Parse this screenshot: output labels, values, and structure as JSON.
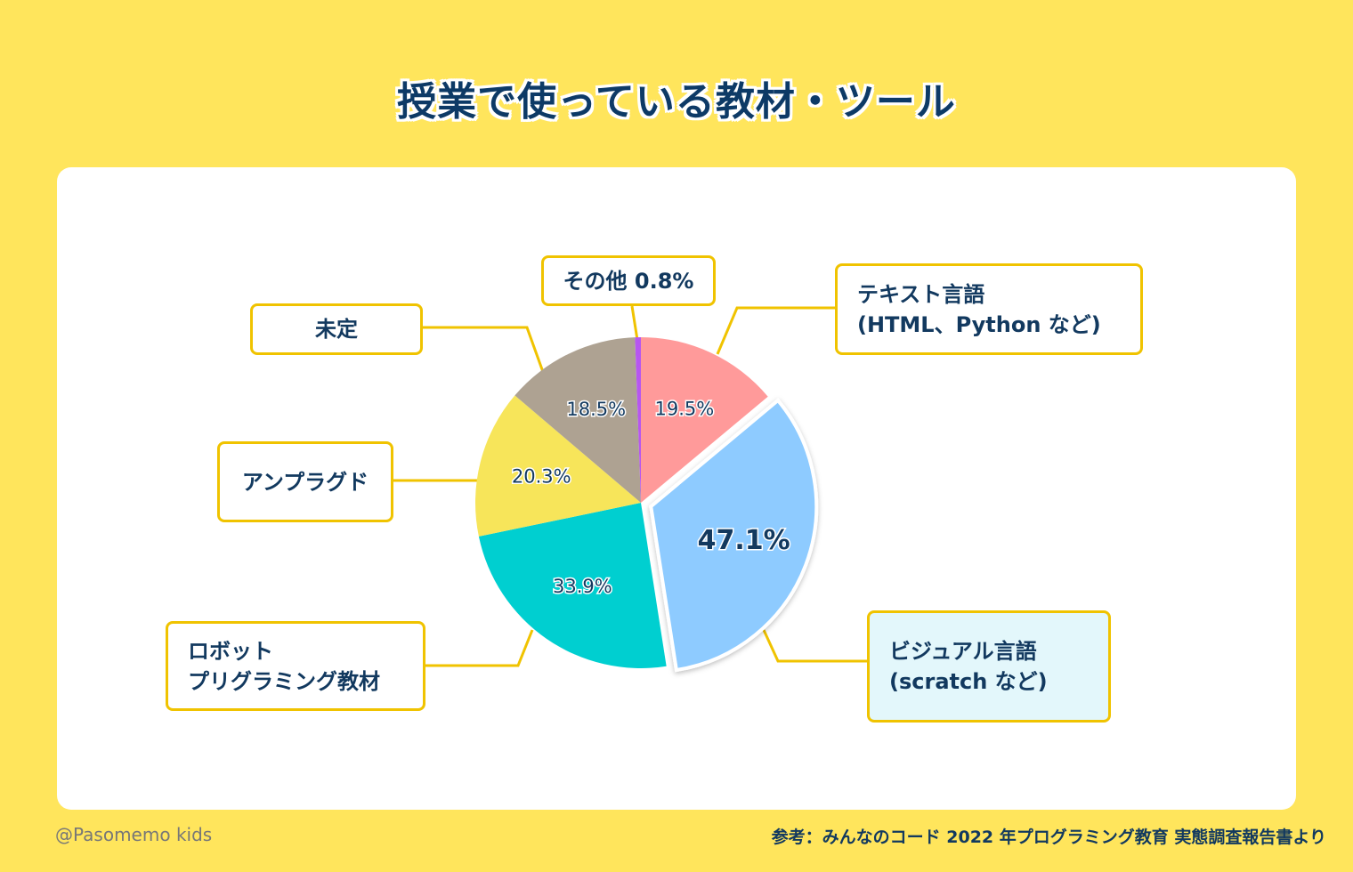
{
  "title": "授業で使っている教材・ツール",
  "footer": {
    "credit": "@Pasomemo kids",
    "source": "参考：みんなのコード 2022 年プログラミング教育 実態調査報告書より"
  },
  "chart_data": {
    "type": "pie",
    "slices": [
      {
        "label_lines": [
          "テキスト言語",
          "(HTML、Python など)"
        ],
        "value": 19.5,
        "value_label": "19.5%",
        "color": "#ff9a9a"
      },
      {
        "label_lines": [
          "ビジュアル言語",
          "(scratch など)"
        ],
        "value": 47.1,
        "value_label": "47.1%",
        "color": "#8ecbff",
        "exploded": true,
        "highlight_bg": "#e3f7fb"
      },
      {
        "label_lines": [
          "ロボット",
          "プリグラミング教材"
        ],
        "value": 33.9,
        "value_label": "33.9%",
        "color": "#00cfd0"
      },
      {
        "label_lines": [
          "アンプラグド"
        ],
        "value": 20.3,
        "value_label": "20.3%",
        "color": "#f7e55a"
      },
      {
        "label_lines": [
          "未定"
        ],
        "value": 18.5,
        "value_label": "18.5%",
        "color": "#aea292"
      },
      {
        "label_lines": [
          "その他 0.8%"
        ],
        "value": 0.8,
        "value_label": "",
        "color": "#b756f0"
      }
    ],
    "colors": {
      "leader_line": "#f0c300",
      "value_text": "#12395f",
      "box_border": "#f0c300"
    }
  }
}
